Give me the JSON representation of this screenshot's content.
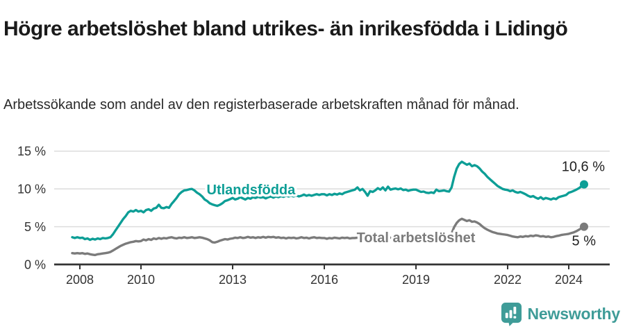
{
  "header": {
    "title": "Högre arbetslöshet bland utrikes- än inrikesfödda i Lidingö",
    "subtitle": "Arbetssökande som andel av den registerbaserade arbetskraften månad för månad."
  },
  "footer": {
    "brand": "Newsworthy"
  },
  "colors": {
    "teal": "#0d9e96",
    "gray": "#7b7b7b",
    "grid": "#dcdcdc",
    "axis": "#333333",
    "tick_text": "#333333",
    "value_label": "#222222",
    "brand_teal": "#3f9c98"
  },
  "chart_data": {
    "type": "line",
    "title": "Högre arbetslöshet bland utrikes- än inrikesfödda i Lidingö",
    "subtitle": "Arbetssökande som andel av den registerbaserade arbetskraften månad för månad.",
    "unit": "%",
    "grid": true,
    "legend_position": "inline-labels",
    "x_start_year": 2007.75,
    "x_step_years": 0.0833333,
    "x_end_year": 2024.5,
    "ylim": [
      0,
      16.5
    ],
    "x_ticks": [
      {
        "label": "2008",
        "year": 2008
      },
      {
        "label": "2010",
        "year": 2010
      },
      {
        "label": "2013",
        "year": 2013
      },
      {
        "label": "2016",
        "year": 2016
      },
      {
        "label": "2019",
        "year": 2019
      },
      {
        "label": "2022",
        "year": 2022
      },
      {
        "label": "2024",
        "year": 2024
      }
    ],
    "y_ticks": [
      {
        "label": "0 %",
        "value": 0
      },
      {
        "label": "5 %",
        "value": 5
      },
      {
        "label": "10 %",
        "value": 10
      },
      {
        "label": "15 %",
        "value": 15
      }
    ],
    "series": [
      {
        "name": "Utlandsfödda",
        "color": "#0d9e96",
        "end_label": "10,6 %",
        "end_value": 10.6,
        "label_anchor": {
          "year": 2013.6,
          "value": 9.9
        },
        "values": [
          3.6,
          3.5,
          3.6,
          3.5,
          3.55,
          3.35,
          3.45,
          3.25,
          3.4,
          3.3,
          3.45,
          3.35,
          3.5,
          3.45,
          3.5,
          3.6,
          4.0,
          4.5,
          5.0,
          5.5,
          6.0,
          6.4,
          6.9,
          7.1,
          7.0,
          7.2,
          7.0,
          7.1,
          6.9,
          7.2,
          7.3,
          7.1,
          7.4,
          7.5,
          7.9,
          7.5,
          7.45,
          7.6,
          7.5,
          8.0,
          8.4,
          8.8,
          9.3,
          9.6,
          9.8,
          9.85,
          9.95,
          10.0,
          9.8,
          9.5,
          9.3,
          9.0,
          8.6,
          8.4,
          8.1,
          7.95,
          7.85,
          7.75,
          7.9,
          8.1,
          8.4,
          8.5,
          8.65,
          8.8,
          8.6,
          8.7,
          8.9,
          8.75,
          8.6,
          8.8,
          8.7,
          8.9,
          8.8,
          8.95,
          8.85,
          8.9,
          8.75,
          8.9,
          9.0,
          8.85,
          9.0,
          8.9,
          9.05,
          8.95,
          9.1,
          9.0,
          9.1,
          9.0,
          9.15,
          9.0,
          9.1,
          9.25,
          9.1,
          9.2,
          9.1,
          9.2,
          9.3,
          9.2,
          9.3,
          9.3,
          9.15,
          9.3,
          9.2,
          9.35,
          9.25,
          9.4,
          9.3,
          9.5,
          9.6,
          9.7,
          9.8,
          9.9,
          10.2,
          9.8,
          10.0,
          9.6,
          9.1,
          9.7,
          9.6,
          9.8,
          10.1,
          9.9,
          10.2,
          9.8,
          10.3,
          9.9,
          10.0,
          10.05,
          9.95,
          10.05,
          9.85,
          9.9,
          9.75,
          9.85,
          9.9,
          9.9,
          9.75,
          9.6,
          9.65,
          9.5,
          9.45,
          9.55,
          9.45,
          9.9,
          9.7,
          9.75,
          9.8,
          9.7,
          9.65,
          10.2,
          11.6,
          12.7,
          13.3,
          13.6,
          13.4,
          13.2,
          13.35,
          13.0,
          13.15,
          13.0,
          12.7,
          12.3,
          12.0,
          11.6,
          11.3,
          11.0,
          10.7,
          10.4,
          10.2,
          10.0,
          9.9,
          9.85,
          9.7,
          9.8,
          9.6,
          9.5,
          9.6,
          9.45,
          9.3,
          9.1,
          8.95,
          9.05,
          8.85,
          8.7,
          8.9,
          8.65,
          8.8,
          8.7,
          8.6,
          8.75,
          8.65,
          8.9,
          9.0,
          9.1,
          9.2,
          9.5,
          9.6,
          9.75,
          9.9,
          10.1,
          10.35,
          10.6
        ]
      },
      {
        "name": "Total arbetslöshet",
        "color": "#7b7b7b",
        "end_label": "5 %",
        "end_value": 5.0,
        "label_anchor": {
          "year": 2019.0,
          "value": 3.6
        },
        "values": [
          1.5,
          1.45,
          1.5,
          1.45,
          1.5,
          1.4,
          1.45,
          1.35,
          1.3,
          1.25,
          1.35,
          1.4,
          1.45,
          1.5,
          1.55,
          1.65,
          1.85,
          2.05,
          2.25,
          2.45,
          2.6,
          2.75,
          2.85,
          2.95,
          3.0,
          3.1,
          3.05,
          3.1,
          3.3,
          3.2,
          3.35,
          3.25,
          3.45,
          3.35,
          3.5,
          3.4,
          3.5,
          3.45,
          3.55,
          3.6,
          3.5,
          3.45,
          3.55,
          3.5,
          3.6,
          3.5,
          3.55,
          3.6,
          3.5,
          3.55,
          3.6,
          3.55,
          3.45,
          3.35,
          3.2,
          2.95,
          2.9,
          3.0,
          3.15,
          3.25,
          3.35,
          3.3,
          3.4,
          3.45,
          3.55,
          3.5,
          3.6,
          3.5,
          3.55,
          3.65,
          3.55,
          3.6,
          3.5,
          3.6,
          3.55,
          3.65,
          3.55,
          3.65,
          3.6,
          3.65,
          3.55,
          3.6,
          3.5,
          3.55,
          3.45,
          3.55,
          3.5,
          3.55,
          3.45,
          3.5,
          3.6,
          3.5,
          3.55,
          3.45,
          3.55,
          3.6,
          3.5,
          3.55,
          3.5,
          3.5,
          3.4,
          3.5,
          3.45,
          3.55,
          3.5,
          3.45,
          3.55,
          3.5,
          3.55,
          3.45,
          3.5,
          3.5,
          3.55,
          3.45,
          3.5,
          3.55,
          3.45,
          3.55,
          3.5,
          3.6,
          3.55,
          3.5,
          3.55,
          3.6,
          3.5,
          3.55,
          3.45,
          3.5,
          3.55,
          3.5,
          3.45,
          3.5,
          3.45,
          3.5,
          3.55,
          3.5,
          3.45,
          3.4,
          3.45,
          3.5,
          3.45,
          3.5,
          3.55,
          3.5,
          3.55,
          3.6,
          3.65,
          3.7,
          3.75,
          4.1,
          4.95,
          5.5,
          5.85,
          6.05,
          5.9,
          5.75,
          5.85,
          5.65,
          5.7,
          5.55,
          5.35,
          5.05,
          4.8,
          4.6,
          4.45,
          4.3,
          4.2,
          4.1,
          4.05,
          4.0,
          3.95,
          3.9,
          3.8,
          3.7,
          3.65,
          3.6,
          3.7,
          3.65,
          3.75,
          3.7,
          3.8,
          3.75,
          3.85,
          3.8,
          3.7,
          3.75,
          3.65,
          3.7,
          3.6,
          3.65,
          3.75,
          3.8,
          3.9,
          3.95,
          4.0,
          4.05,
          4.15,
          4.25,
          4.4,
          4.6,
          4.8,
          5.0
        ]
      }
    ]
  }
}
